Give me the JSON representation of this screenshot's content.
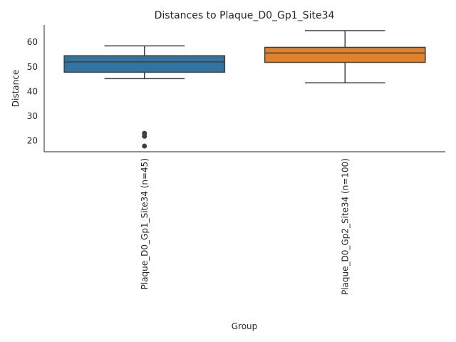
{
  "chart_data": {
    "type": "box",
    "title": "Distances to Plaque_D0_Gp1_Site34",
    "xlabel": "Group",
    "ylabel": "Distance",
    "ylim": [
      15.5,
      67
    ],
    "yticks": [
      20,
      30,
      40,
      50,
      60
    ],
    "grid": false,
    "colors": {
      "axis": "#262626",
      "box_edge": "#3f3f3f",
      "outlier": "#3f3f3f"
    },
    "groups": [
      {
        "label": "Plaque_D0_Gp1_Site34 (n=45)",
        "color": "#3274a1",
        "whisker_low": 45.2,
        "q1": 47.8,
        "median": 52.0,
        "q3": 54.5,
        "whisker_high": 58.5,
        "outliers": [
          23.0,
          21.8,
          17.8
        ]
      },
      {
        "label": "Plaque_D0_Gp2_Site34 (n=100)",
        "color": "#e1812c",
        "whisker_low": 43.5,
        "q1": 51.8,
        "median": 55.6,
        "q3": 57.9,
        "whisker_high": 64.7,
        "outliers": []
      }
    ]
  }
}
